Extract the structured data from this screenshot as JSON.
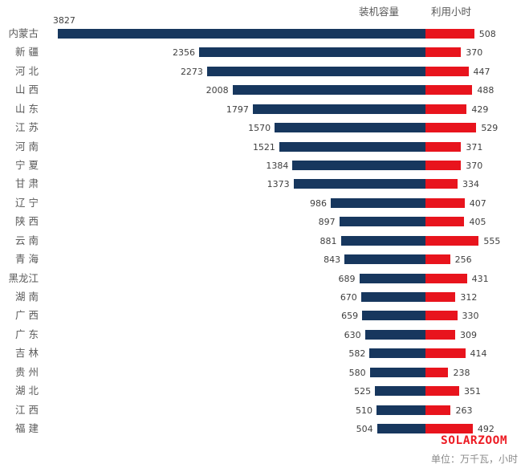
{
  "header": {
    "capacity_label": "装机容量",
    "hours_label": "利用小时"
  },
  "footer": {
    "brand": "SOLARZOOM",
    "unit_note": "单位：万千瓦，小时"
  },
  "colors": {
    "capacity_bar": "#17375E",
    "hours_bar": "#E8141D",
    "brand_red": "#ED1C24",
    "label_gray": "#595959",
    "value_text": "#404040"
  },
  "chart_data": {
    "type": "bar",
    "orientation": "horizontal-diverging",
    "title": "",
    "unit": "万千瓦, 小时",
    "legend_position": "top",
    "grid": false,
    "categories": [
      "内蒙古",
      "新 疆",
      "河 北",
      "山 西",
      "山 东",
      "江 苏",
      "河 南",
      "宁 夏",
      "甘 肃",
      "辽 宁",
      "陕 西",
      "云 南",
      "青 海",
      "黑龙江",
      "湖 南",
      "广 西",
      "广 东",
      "吉 林",
      "贵 州",
      "湖 北",
      "江 西",
      "福 建"
    ],
    "series": [
      {
        "name": "装机容量",
        "direction": "left",
        "color": "#17375E",
        "values": [
          3827,
          2356,
          2273,
          2008,
          1797,
          1570,
          1521,
          1384,
          1373,
          986,
          897,
          881,
          843,
          689,
          670,
          659,
          630,
          582,
          580,
          525,
          510,
          504
        ]
      },
      {
        "name": "利用小时",
        "direction": "right",
        "color": "#E8141D",
        "values": [
          508,
          370,
          447,
          488,
          429,
          529,
          371,
          370,
          334,
          407,
          405,
          555,
          256,
          431,
          312,
          330,
          309,
          414,
          238,
          351,
          263,
          492
        ]
      }
    ]
  }
}
